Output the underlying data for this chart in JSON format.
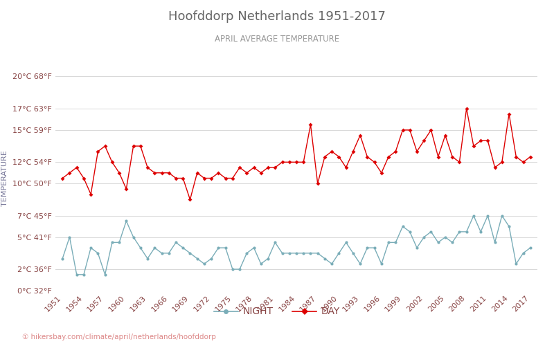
{
  "title": "Hoofddorp Netherlands 1951-2017",
  "subtitle": "APRIL AVERAGE TEMPERATURE",
  "ylabel": "TEMPERATURE",
  "footer": "① hikersbay.com/climate/april/netherlands/hoofddorp",
  "years": [
    1951,
    1952,
    1953,
    1954,
    1955,
    1956,
    1957,
    1958,
    1959,
    1960,
    1961,
    1962,
    1963,
    1964,
    1965,
    1966,
    1967,
    1968,
    1969,
    1970,
    1971,
    1972,
    1973,
    1974,
    1975,
    1976,
    1977,
    1978,
    1979,
    1980,
    1981,
    1982,
    1983,
    1984,
    1985,
    1986,
    1987,
    1988,
    1989,
    1990,
    1991,
    1992,
    1993,
    1994,
    1995,
    1996,
    1997,
    1998,
    1999,
    2000,
    2001,
    2002,
    2003,
    2004,
    2005,
    2006,
    2007,
    2008,
    2009,
    2010,
    2011,
    2012,
    2013,
    2014,
    2015,
    2016,
    2017
  ],
  "day": [
    10.5,
    11.0,
    11.5,
    10.5,
    9.0,
    13.0,
    13.5,
    12.0,
    11.0,
    9.5,
    13.5,
    13.5,
    11.5,
    11.0,
    11.0,
    11.0,
    10.5,
    10.5,
    8.5,
    11.0,
    10.5,
    10.5,
    11.0,
    10.5,
    10.5,
    11.5,
    11.0,
    11.5,
    11.0,
    11.5,
    11.5,
    12.0,
    12.0,
    12.0,
    12.0,
    15.5,
    10.0,
    12.5,
    13.0,
    12.5,
    11.5,
    13.0,
    14.5,
    12.5,
    12.0,
    11.0,
    12.5,
    13.0,
    15.0,
    15.0,
    13.0,
    14.0,
    15.0,
    12.5,
    14.5,
    12.5,
    12.0,
    17.0,
    13.5,
    14.0,
    14.0,
    11.5,
    12.0,
    16.5,
    12.5,
    12.0,
    12.5
  ],
  "night": [
    3.0,
    5.0,
    1.5,
    1.5,
    4.0,
    3.5,
    1.5,
    4.5,
    4.5,
    6.5,
    5.0,
    4.0,
    3.0,
    4.0,
    3.5,
    3.5,
    4.5,
    4.0,
    3.5,
    3.0,
    2.5,
    3.0,
    4.0,
    4.0,
    2.0,
    2.0,
    3.5,
    4.0,
    2.5,
    3.0,
    4.5,
    3.5,
    3.5,
    3.5,
    3.5,
    3.5,
    3.5,
    3.0,
    2.5,
    3.5,
    4.5,
    3.5,
    2.5,
    4.0,
    4.0,
    2.5,
    4.5,
    4.5,
    6.0,
    5.5,
    4.0,
    5.0,
    5.5,
    4.5,
    5.0,
    4.5,
    5.5,
    5.5,
    7.0,
    5.5,
    7.0,
    4.5,
    7.0,
    6.0,
    2.5,
    3.5,
    4.0
  ],
  "yticks_c": [
    0,
    2,
    5,
    7,
    10,
    12,
    15,
    17,
    20
  ],
  "yticks_f": [
    32,
    36,
    41,
    45,
    50,
    54,
    59,
    63,
    68
  ],
  "xtick_years": [
    1951,
    1954,
    1957,
    1960,
    1963,
    1966,
    1969,
    1972,
    1975,
    1978,
    1981,
    1984,
    1987,
    1990,
    1993,
    1996,
    1999,
    2002,
    2005,
    2008,
    2011,
    2014,
    2017
  ],
  "ylim": [
    0,
    21
  ],
  "xlim": [
    1950,
    2018
  ],
  "day_color": "#dd0000",
  "night_color": "#7aadb8",
  "bg_color": "#ffffff",
  "grid_color": "#d8d8d8",
  "title_color": "#666666",
  "subtitle_color": "#999999",
  "label_color": "#884444",
  "axis_label_color": "#777799",
  "night_legend": "NIGHT",
  "day_legend": "DAY",
  "footer_color": "#dd8888"
}
